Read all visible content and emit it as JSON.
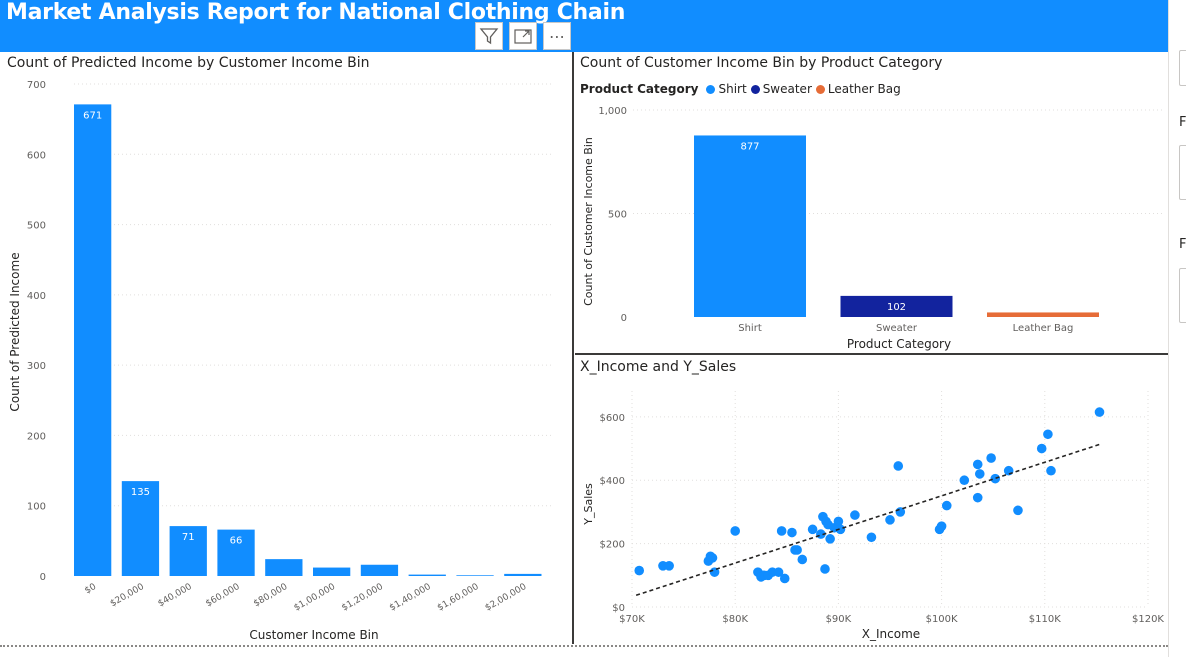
{
  "header": {
    "title": "Market Analysis Report for National Clothing Chain",
    "background": "#118dff"
  },
  "toolbar": {
    "filter_icon": "filter-icon",
    "focus_icon": "focus-mode-icon",
    "more_label": "⋯"
  },
  "side_panel": {
    "letters": [
      "F",
      "F"
    ]
  },
  "visuals": {
    "income_bins": {
      "title": "Count of Predicted Income by Customer Income Bin"
    },
    "product_category": {
      "title": "Count of Customer Income Bin by Product Category",
      "legend_title": "Product Category",
      "legend_items": [
        {
          "label": "Shirt",
          "color": "#118dff"
        },
        {
          "label": "Sweater",
          "color": "#12239e"
        },
        {
          "label": "Leather Bag",
          "color": "#e66c37"
        }
      ]
    },
    "scatter": {
      "title": "X_Income and Y_Sales"
    }
  },
  "chart_data": [
    {
      "type": "bar",
      "title": "Count of Predicted Income by Customer Income Bin",
      "xlabel": "Customer Income Bin",
      "ylabel": "Count of Predicted Income",
      "categories": [
        "$0",
        "$20,000",
        "$40,000",
        "$60,000",
        "$80,000",
        "$1,00,000",
        "$1,20,000",
        "$1,40,000",
        "$1,60,000",
        "$2,00,000"
      ],
      "values": [
        671,
        135,
        71,
        66,
        24,
        12,
        16,
        2,
        1,
        3
      ],
      "data_labels": [
        "671",
        "135",
        "71",
        "66",
        "",
        "",
        "",
        "",
        "",
        ""
      ],
      "ylim": [
        0,
        700
      ],
      "yticks": [
        0,
        100,
        200,
        300,
        400,
        500,
        600,
        700
      ],
      "ytick_labels": [
        "0",
        "100",
        "200",
        "300",
        "400",
        "500",
        "600",
        "700"
      ],
      "color": "#118dff",
      "grid": true
    },
    {
      "type": "bar",
      "title": "Count of Customer Income Bin by Product Category",
      "xlabel": "Product Category",
      "ylabel": "Count of Customer Income Bin",
      "categories": [
        "Shirt",
        "Sweater",
        "Leather Bag"
      ],
      "values": [
        877,
        102,
        22
      ],
      "data_labels": [
        "877",
        "102",
        ""
      ],
      "colors": [
        "#118dff",
        "#12239e",
        "#e66c37"
      ],
      "ylim": [
        0,
        1000
      ],
      "yticks": [
        0,
        500,
        1000
      ],
      "ytick_labels": [
        "0",
        "500",
        "1,000"
      ],
      "legend": "top-left",
      "grid": true
    },
    {
      "type": "scatter",
      "title": "X_Income and Y_Sales",
      "xlabel": "X_Income",
      "ylabel": "Y_Sales",
      "xlim": [
        70000,
        120000
      ],
      "ylim": [
        0,
        650
      ],
      "xticks": [
        70000,
        80000,
        90000,
        100000,
        110000,
        120000
      ],
      "xtick_labels": [
        "$70K",
        "$80K",
        "$90K",
        "$100K",
        "$110K",
        "$120K"
      ],
      "yticks": [
        0,
        200,
        400,
        600
      ],
      "ytick_labels": [
        "$0",
        "$200",
        "$400",
        "$600"
      ],
      "color": "#118dff",
      "trendline": {
        "x": [
          70400,
          115500
        ],
        "y": [
          37,
          515
        ],
        "style": "dashed",
        "color": "#252423"
      },
      "points": [
        [
          70700,
          115
        ],
        [
          73000,
          130
        ],
        [
          73600,
          130
        ],
        [
          77400,
          145
        ],
        [
          77600,
          160
        ],
        [
          77800,
          155
        ],
        [
          78000,
          110
        ],
        [
          80000,
          240
        ],
        [
          82200,
          110
        ],
        [
          82500,
          95
        ],
        [
          82800,
          100
        ],
        [
          83200,
          100
        ],
        [
          83600,
          110
        ],
        [
          84200,
          110
        ],
        [
          84500,
          240
        ],
        [
          84800,
          90
        ],
        [
          85500,
          235
        ],
        [
          85800,
          180
        ],
        [
          86000,
          180
        ],
        [
          86500,
          150
        ],
        [
          87500,
          245
        ],
        [
          88300,
          230
        ],
        [
          88500,
          285
        ],
        [
          88700,
          120
        ],
        [
          88800,
          270
        ],
        [
          89000,
          260
        ],
        [
          89200,
          215
        ],
        [
          89600,
          250
        ],
        [
          90000,
          270
        ],
        [
          90200,
          245
        ],
        [
          91600,
          290
        ],
        [
          93200,
          220
        ],
        [
          95000,
          275
        ],
        [
          95800,
          445
        ],
        [
          96000,
          300
        ],
        [
          99800,
          245
        ],
        [
          100000,
          255
        ],
        [
          100500,
          320
        ],
        [
          102200,
          400
        ],
        [
          103500,
          450
        ],
        [
          103700,
          420
        ],
        [
          103500,
          345
        ],
        [
          104800,
          470
        ],
        [
          105200,
          405
        ],
        [
          106500,
          430
        ],
        [
          107400,
          305
        ],
        [
          109700,
          500
        ],
        [
          110300,
          545
        ],
        [
          110600,
          430
        ],
        [
          115300,
          615
        ]
      ],
      "grid": true
    }
  ]
}
